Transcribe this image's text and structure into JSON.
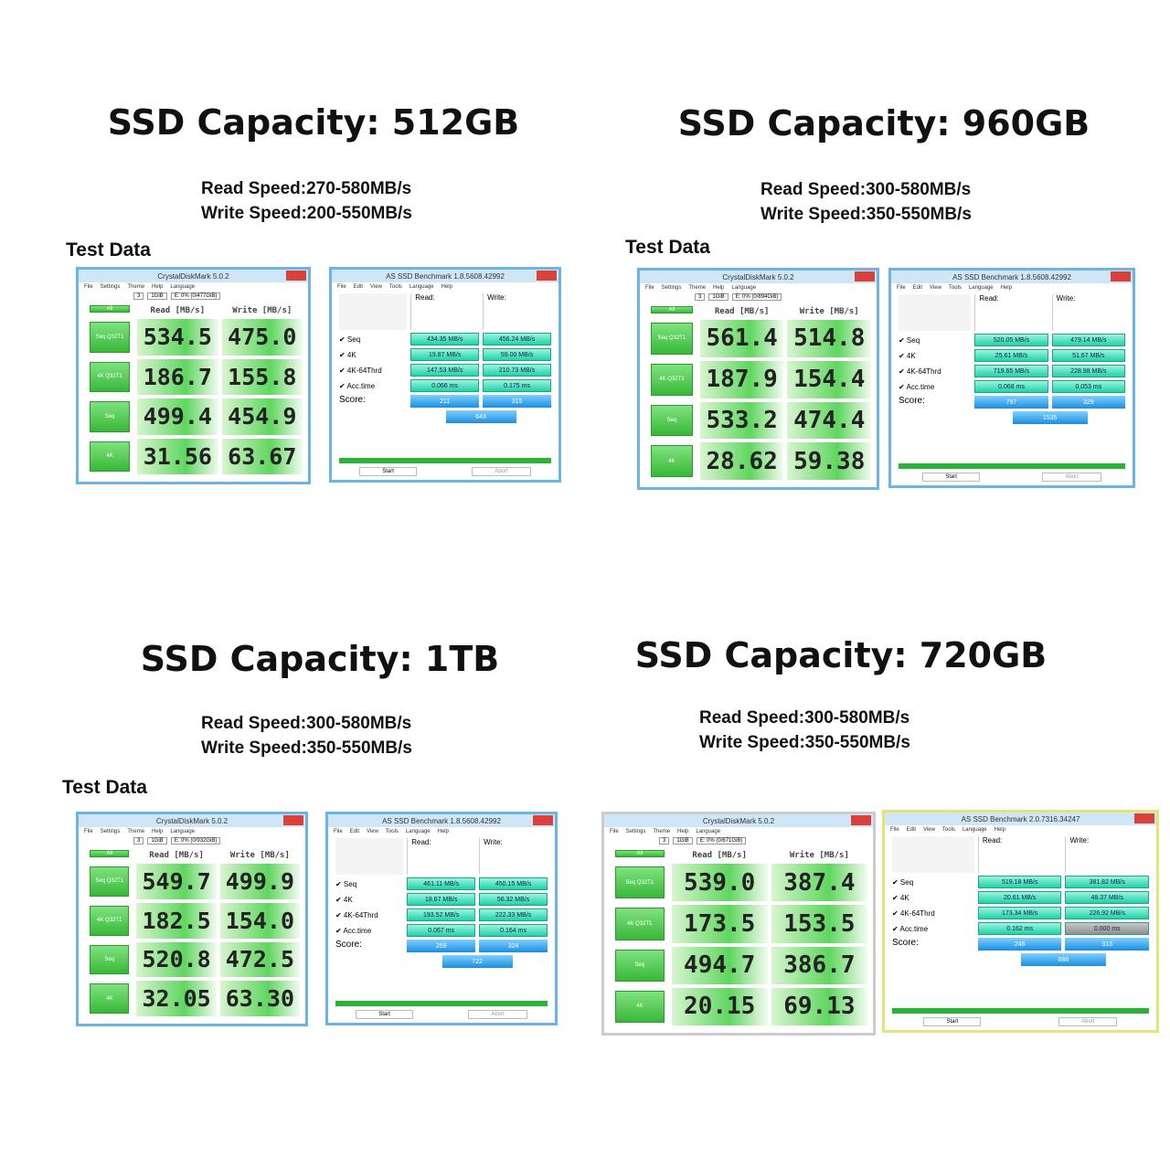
{
  "panels": [
    {
      "title": "SSD Capacity: 512GB",
      "read_speed": "Read Speed:270-580MB/s",
      "write_speed": "Write Speed:200-550MB/s",
      "test_data": "Test Data",
      "crystaldiskmark": {
        "window_title": "CrystalDiskMark 5.0.2",
        "menu": [
          "File",
          "Settings",
          "Theme",
          "Help",
          "Language"
        ],
        "count": "3",
        "size": "1GiB",
        "drive": "E: 0% (0/477GiB)",
        "all_button": "All",
        "read_header": "Read [MB/s]",
        "write_header": "Write [MB/s]",
        "rows": [
          {
            "label": "Seq Q32T1",
            "read": "534.5",
            "write": "475.0"
          },
          {
            "label": "4K Q32T1",
            "read": "186.7",
            "write": "155.8"
          },
          {
            "label": "Seq",
            "read": "499.4",
            "write": "454.9"
          },
          {
            "label": "4K",
            "read": "31.56",
            "write": "63.67"
          }
        ]
      },
      "as_ssd": {
        "window_title": "AS SSD Benchmark 1.8.5608.42992",
        "menu": [
          "File",
          "Edit",
          "View",
          "Tools",
          "Language",
          "Help"
        ],
        "read_header": "Read:",
        "write_header": "Write:",
        "rows": [
          {
            "label": "Seq",
            "read": "434.35 MB/s",
            "write": "456.24 MB/s"
          },
          {
            "label": "4K",
            "read": "19.87 MB/s",
            "write": "59.00 MB/s"
          },
          {
            "label": "4K-64Thrd",
            "read": "147.53 MB/s",
            "write": "210.73 MB/s"
          },
          {
            "label": "Acc.time",
            "read": "0.066 ms",
            "write": "0.175 ms"
          }
        ],
        "score_label": "Score:",
        "score_read": "211",
        "score_write": "315",
        "score_total": "643",
        "start": "Start",
        "abort": "Abort"
      }
    },
    {
      "title": "SSD Capacity: 960GB",
      "read_speed": "Read Speed:300-580MB/s",
      "write_speed": "Write Speed:350-550MB/s",
      "test_data": "Test Data",
      "crystaldiskmark": {
        "window_title": "CrystalDiskMark 5.0.2",
        "menu": [
          "File",
          "Settings",
          "Theme",
          "Help",
          "Language"
        ],
        "count": "3",
        "size": "1GiB",
        "drive": "E: 0% (0/894GiB)",
        "all_button": "All",
        "read_header": "Read [MB/s]",
        "write_header": "Write [MB/s]",
        "rows": [
          {
            "label": "Seq Q32T1",
            "read": "561.4",
            "write": "514.8"
          },
          {
            "label": "4K Q32T1",
            "read": "187.9",
            "write": "154.4"
          },
          {
            "label": "Seq",
            "read": "533.2",
            "write": "474.4"
          },
          {
            "label": "4K",
            "read": "28.62",
            "write": "59.38"
          }
        ]
      },
      "as_ssd": {
        "window_title": "AS SSD Benchmark 1.8.5608.42992",
        "menu": [
          "File",
          "Edit",
          "View",
          "Tools",
          "Language",
          "Help"
        ],
        "read_header": "Read:",
        "write_header": "Write:",
        "rows": [
          {
            "label": "Seq",
            "read": "520.05 MB/s",
            "write": "479.14 MB/s"
          },
          {
            "label": "4K",
            "read": "25.61 MB/s",
            "write": "51.67 MB/s"
          },
          {
            "label": "4K-64Thrd",
            "read": "719.65 MB/s",
            "write": "228.98 MB/s"
          },
          {
            "label": "Acc.time",
            "read": "0.068 ms",
            "write": "0.053 ms"
          }
        ],
        "score_label": "Score:",
        "score_read": "797",
        "score_write": "329",
        "score_total": "1535",
        "start": "Start",
        "abort": "Abort"
      }
    },
    {
      "title": "SSD Capacity: 1TB",
      "read_speed": "Read Speed:300-580MB/s",
      "write_speed": "Write Speed:350-550MB/s",
      "test_data": "Test Data",
      "crystaldiskmark": {
        "window_title": "CrystalDiskMark 5.0.2",
        "menu": [
          "File",
          "Settings",
          "Theme",
          "Help",
          "Language"
        ],
        "count": "3",
        "size": "1GiB",
        "drive": "E: 0% (0/932GiB)",
        "all_button": "All",
        "read_header": "Read [MB/s]",
        "write_header": "Write [MB/s]",
        "rows": [
          {
            "label": "Seq Q32T1",
            "read": "549.7",
            "write": "499.9"
          },
          {
            "label": "4K Q32T1",
            "read": "182.5",
            "write": "154.0"
          },
          {
            "label": "Seq",
            "read": "520.8",
            "write": "472.5"
          },
          {
            "label": "4K",
            "read": "32.05",
            "write": "63.30"
          }
        ]
      },
      "as_ssd": {
        "window_title": "AS SSD Benchmark 1.8.5608.42992",
        "menu": [
          "File",
          "Edit",
          "View",
          "Tools",
          "Language",
          "Help"
        ],
        "read_header": "Read:",
        "write_header": "Write:",
        "rows": [
          {
            "label": "Seq",
            "read": "461.11 MB/s",
            "write": "450.15 MB/s"
          },
          {
            "label": "4K",
            "read": "18.67 MB/s",
            "write": "56.32 MB/s"
          },
          {
            "label": "4K-64Thrd",
            "read": "193.52 MB/s",
            "write": "222.33 MB/s"
          },
          {
            "label": "Acc.time",
            "read": "0.067 ms",
            "write": "0.164 ms"
          }
        ],
        "score_label": "Score:",
        "score_read": "259",
        "score_write": "324",
        "score_total": "722",
        "start": "Start",
        "abort": "Abort"
      }
    },
    {
      "title": "SSD Capacity: 720GB",
      "read_speed": "Read Speed:300-580MB/s",
      "write_speed": "Write Speed:350-550MB/s",
      "crystaldiskmark": {
        "window_title": "CrystalDiskMark 5.0.2",
        "menu": [
          "File",
          "Settings",
          "Theme",
          "Help",
          "Language"
        ],
        "count": "3",
        "size": "1GiB",
        "drive": "E: 0% (0/671GiB)",
        "all_button": "All",
        "read_header": "Read [MB/s]",
        "write_header": "Write [MB/s]",
        "rows": [
          {
            "label": "Seq Q32T1",
            "read": "539.0",
            "write": "387.4"
          },
          {
            "label": "4K Q32T1",
            "read": "173.5",
            "write": "153.5"
          },
          {
            "label": "Seq",
            "read": "494.7",
            "write": "386.7"
          },
          {
            "label": "4K",
            "read": "20.15",
            "write": "69.13"
          }
        ]
      },
      "as_ssd": {
        "window_title": "AS SSD Benchmark 2.0.7316.34247",
        "menu": [
          "File",
          "Edit",
          "View",
          "Tools",
          "Language",
          "Help"
        ],
        "read_header": "Read:",
        "write_header": "Write:",
        "rows": [
          {
            "label": "Seq",
            "read": "519.18 MB/s",
            "write": "381.82 MB/s"
          },
          {
            "label": "4K",
            "read": "20.61 MB/s",
            "write": "48.37 MB/s"
          },
          {
            "label": "4K-64Thrd",
            "read": "173.34 MB/s",
            "write": "226.92 MB/s"
          },
          {
            "label": "Acc.time",
            "read": "0.162 ms",
            "write": "0.000 ms"
          }
        ],
        "score_label": "Score:",
        "score_read": "246",
        "score_write": "313",
        "score_total": "686",
        "start": "Start",
        "abort": "Abort"
      }
    }
  ]
}
